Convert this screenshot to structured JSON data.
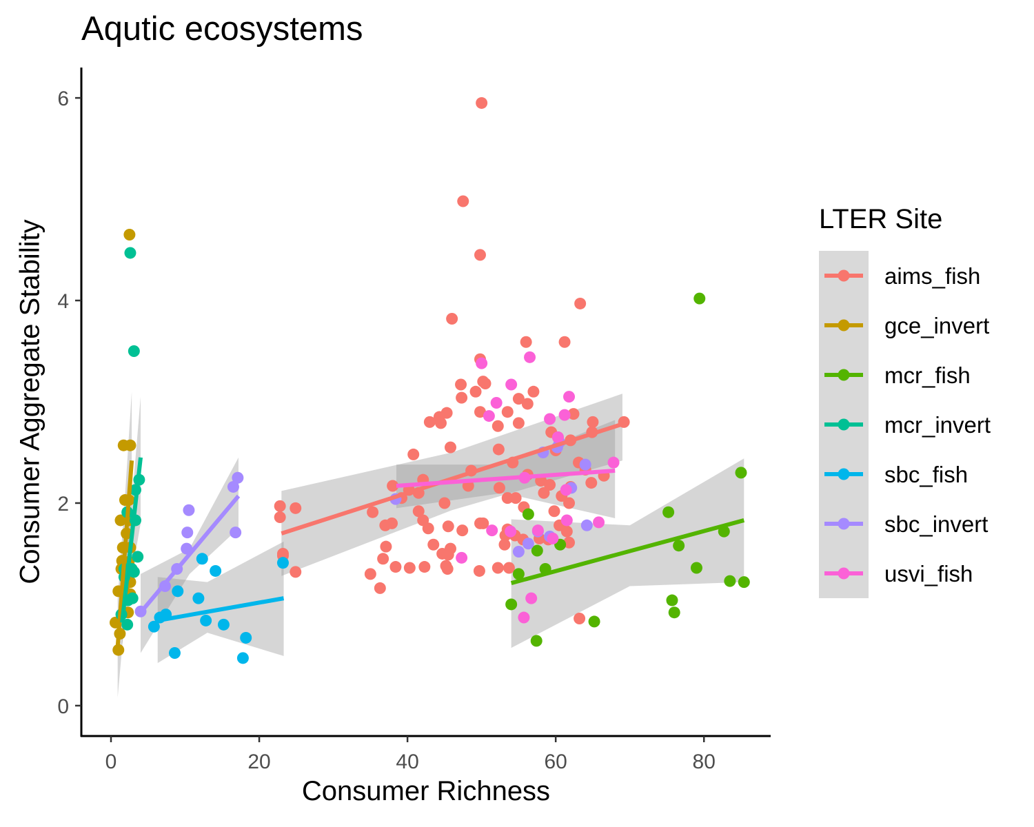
{
  "chart_data": {
    "type": "scatter",
    "title": "Aqutic ecosystems",
    "xlabel": "Consumer Richness",
    "ylabel": "Consumer Aggregate Stability",
    "xlim": [
      -4,
      89
    ],
    "ylim": [
      -0.3,
      6.3
    ],
    "xticks": [
      0,
      20,
      40,
      60,
      80
    ],
    "yticks": [
      0,
      2,
      4,
      6
    ],
    "grid": false,
    "legend": {
      "title": "LTER Site",
      "position": "right"
    },
    "series": [
      {
        "name": "aims_fish",
        "color": "#F8766D",
        "trend": {
          "x": [
            23,
            69
          ],
          "y": [
            1.7,
            2.78
          ],
          "band": [
            [
              23,
              1.28,
              2.12
            ],
            [
              46,
              1.93,
              2.5
            ],
            [
              69,
              2.42,
              3.08
            ]
          ]
        },
        "points": [
          [
            50,
            5.95
          ],
          [
            47.5,
            4.98
          ],
          [
            49.8,
            4.45
          ],
          [
            63.3,
            3.97
          ],
          [
            46,
            3.82
          ],
          [
            56,
            3.59
          ],
          [
            61.2,
            3.59
          ],
          [
            49.8,
            3.42
          ],
          [
            50.2,
            3.2
          ],
          [
            47.2,
            3.17
          ],
          [
            50.5,
            3.18
          ],
          [
            49.2,
            3.1
          ],
          [
            57,
            3.1
          ],
          [
            47.3,
            3.04
          ],
          [
            55,
            3.03
          ],
          [
            56.2,
            2.98
          ],
          [
            45.3,
            2.89
          ],
          [
            49.8,
            2.9
          ],
          [
            53.5,
            2.9
          ],
          [
            62.4,
            2.88
          ],
          [
            44.3,
            2.85
          ],
          [
            43,
            2.8
          ],
          [
            44.5,
            2.79
          ],
          [
            55,
            2.79
          ],
          [
            52.2,
            2.76
          ],
          [
            65,
            2.8
          ],
          [
            69.2,
            2.8
          ],
          [
            59.4,
            2.7
          ],
          [
            64.9,
            2.7
          ],
          [
            60.3,
            2.65
          ],
          [
            62,
            2.62
          ],
          [
            45.8,
            2.55
          ],
          [
            52.3,
            2.53
          ],
          [
            40.8,
            2.48
          ],
          [
            54.2,
            2.4
          ],
          [
            60,
            2.52
          ],
          [
            63.1,
            2.4
          ],
          [
            64,
            2.33
          ],
          [
            66.5,
            2.27
          ],
          [
            48.6,
            2.32
          ],
          [
            38,
            2.17
          ],
          [
            40.2,
            2.13
          ],
          [
            41.5,
            2.1
          ],
          [
            42.1,
            2.23
          ],
          [
            48.2,
            2.17
          ],
          [
            52.4,
            2.15
          ],
          [
            56.2,
            2.28
          ],
          [
            58,
            2.22
          ],
          [
            59.2,
            2.18
          ],
          [
            64.8,
            2.2
          ],
          [
            62,
            2.16
          ],
          [
            45,
            2.0
          ],
          [
            39.2,
            2.05
          ],
          [
            41.5,
            1.92
          ],
          [
            53.5,
            2.05
          ],
          [
            54.6,
            2.05
          ],
          [
            55.7,
            1.96
          ],
          [
            58.4,
            2.1
          ],
          [
            60.8,
            2.07
          ],
          [
            61.8,
            2.0
          ],
          [
            59.8,
            1.92
          ],
          [
            35.3,
            1.91
          ],
          [
            42.1,
            1.83
          ],
          [
            42.8,
            1.75
          ],
          [
            37,
            1.78
          ],
          [
            37.9,
            1.8
          ],
          [
            45.5,
            1.77
          ],
          [
            49.8,
            1.8
          ],
          [
            50.2,
            1.8
          ],
          [
            47.4,
            1.73
          ],
          [
            53.5,
            1.74
          ],
          [
            60.5,
            1.78
          ],
          [
            61.5,
            1.72
          ],
          [
            53.2,
            1.68
          ],
          [
            54.5,
            1.68
          ],
          [
            55.6,
            1.64
          ],
          [
            57.8,
            1.65
          ],
          [
            59,
            1.64
          ],
          [
            43.5,
            1.59
          ],
          [
            53.1,
            1.59
          ],
          [
            61.8,
            1.61
          ],
          [
            37.1,
            1.57
          ],
          [
            45.8,
            1.55
          ],
          [
            44.7,
            1.5
          ],
          [
            45.5,
            1.49
          ],
          [
            36.7,
            1.45
          ],
          [
            38.4,
            1.37
          ],
          [
            40.3,
            1.36
          ],
          [
            42.3,
            1.37
          ],
          [
            45.2,
            1.38
          ],
          [
            45.4,
            1.35
          ],
          [
            49.7,
            1.33
          ],
          [
            52.2,
            1.36
          ],
          [
            53.7,
            1.36
          ],
          [
            35,
            1.3
          ],
          [
            36.3,
            1.16
          ],
          [
            22.8,
            1.97
          ],
          [
            22.8,
            1.86
          ],
          [
            24.9,
            1.95
          ],
          [
            23.2,
            1.5
          ],
          [
            23.2,
            1.48
          ],
          [
            24.9,
            1.32
          ],
          [
            63.2,
            0.86
          ]
        ]
      },
      {
        "name": "gce_invert",
        "color": "#C49A00",
        "trend": {
          "x": [
            0.9,
            2.8
          ],
          "y": [
            0.58,
            2.42
          ],
          "band": [
            [
              0.9,
              0.08,
              1.05
            ],
            [
              1.9,
              0.9,
              2.08
            ],
            [
              2.8,
              1.78,
              3.1
            ]
          ]
        },
        "points": [
          [
            2.5,
            4.65
          ],
          [
            1.7,
            2.57
          ],
          [
            2.6,
            2.57
          ],
          [
            1.9,
            2.03
          ],
          [
            2.4,
            2.03
          ],
          [
            1.3,
            1.83
          ],
          [
            2.4,
            1.83
          ],
          [
            2.1,
            1.7
          ],
          [
            1.6,
            1.56
          ],
          [
            2.6,
            1.56
          ],
          [
            1.5,
            1.43
          ],
          [
            2.4,
            1.42
          ],
          [
            1.4,
            1.35
          ],
          [
            2.6,
            1.22
          ],
          [
            1,
            1.13
          ],
          [
            1.8,
            1.13
          ],
          [
            2.6,
            1.1
          ],
          [
            2.3,
            0.92
          ],
          [
            0.6,
            0.82
          ],
          [
            1.2,
            0.71
          ],
          [
            1,
            0.55
          ]
        ]
      },
      {
        "name": "mcr_fish",
        "color": "#53B400",
        "trend": {
          "x": [
            54,
            85.4
          ],
          "y": [
            1.21,
            1.83
          ],
          "band": [
            [
              54,
              0.57,
              1.84
            ],
            [
              70,
              1.18,
              1.78
            ],
            [
              85.4,
              1.22,
              2.44
            ]
          ]
        },
        "points": [
          [
            79.4,
            4.02
          ],
          [
            85,
            2.3
          ],
          [
            56.3,
            1.89
          ],
          [
            75.2,
            1.91
          ],
          [
            82.7,
            1.72
          ],
          [
            76.6,
            1.58
          ],
          [
            57.5,
            1.53
          ],
          [
            60.6,
            1.59
          ],
          [
            58.6,
            1.35
          ],
          [
            79,
            1.36
          ],
          [
            55,
            1.3
          ],
          [
            83.5,
            1.23
          ],
          [
            85.4,
            1.22
          ],
          [
            75.7,
            1.04
          ],
          [
            54,
            1.0
          ],
          [
            76,
            0.92
          ],
          [
            65.2,
            0.83
          ],
          [
            57.4,
            0.64
          ]
        ]
      },
      {
        "name": "mcr_invert",
        "color": "#00C094",
        "trend": {
          "x": [
            1.5,
            4
          ],
          "y": [
            0.82,
            2.45
          ],
          "band": [
            [
              1.5,
              0.6,
              1.05
            ],
            [
              2.8,
              1.3,
              2.0
            ],
            [
              4,
              1.8,
              3.05
            ]
          ]
        },
        "points": [
          [
            2.6,
            4.47
          ],
          [
            3.1,
            3.5
          ],
          [
            3.8,
            2.23
          ],
          [
            3.3,
            2.13
          ],
          [
            2.2,
            1.91
          ],
          [
            3.3,
            1.83
          ],
          [
            3.6,
            1.47
          ],
          [
            1.8,
            1.35
          ],
          [
            2.8,
            1.35
          ],
          [
            3.1,
            1.32
          ],
          [
            1.8,
            1.27
          ],
          [
            2.9,
            1.06
          ],
          [
            2.3,
            1.04
          ],
          [
            1.4,
            0.9
          ],
          [
            2.2,
            0.8
          ]
        ]
      },
      {
        "name": "sbc_fish",
        "color": "#00B6EB",
        "trend": {
          "x": [
            6.3,
            23.3
          ],
          "y": [
            0.84,
            1.06
          ],
          "band": [
            [
              6.3,
              0.42,
              1.27
            ],
            [
              13,
              0.72,
              1.22
            ],
            [
              23.3,
              0.49,
              1.62
            ]
          ]
        },
        "points": [
          [
            23.2,
            1.41
          ],
          [
            12.3,
            1.45
          ],
          [
            14.1,
            1.33
          ],
          [
            9,
            1.13
          ],
          [
            11.8,
            1.06
          ],
          [
            7.4,
            0.9
          ],
          [
            6.6,
            0.87
          ],
          [
            12.8,
            0.84
          ],
          [
            5.8,
            0.78
          ],
          [
            15.2,
            0.8
          ],
          [
            18.2,
            0.67
          ],
          [
            8.6,
            0.52
          ],
          [
            17.8,
            0.47
          ]
        ]
      },
      {
        "name": "sbc_invert",
        "color": "#A58AFF",
        "trend": {
          "x": [
            4,
            17.2
          ],
          "y": [
            0.92,
            2.07
          ],
          "band": [
            [
              4,
              0.52,
              1.3
            ],
            [
              10.6,
              1.3,
              1.55
            ],
            [
              17.2,
              1.75,
              2.45
            ]
          ]
        },
        "points": [
          [
            17.1,
            2.25
          ],
          [
            16.5,
            2.16
          ],
          [
            10.5,
            1.93
          ],
          [
            10.3,
            1.71
          ],
          [
            16.8,
            1.71
          ],
          [
            10.2,
            1.55
          ],
          [
            8.9,
            1.35
          ],
          [
            7.3,
            1.18
          ],
          [
            4,
            0.93
          ],
          [
            64,
            2.38
          ],
          [
            60.2,
            2.55
          ],
          [
            62.1,
            2.15
          ],
          [
            55,
            1.52
          ],
          [
            56.3,
            1.6
          ],
          [
            57.6,
            1.72
          ],
          [
            59.2,
            1.67
          ],
          [
            64.2,
            1.78
          ],
          [
            58.3,
            2.5
          ],
          [
            60.5,
            2.6
          ],
          [
            38.4,
            2.04
          ]
        ]
      },
      {
        "name": "usvi_fish",
        "color": "#FB61D7",
        "trend": {
          "x": [
            38.5,
            68
          ],
          "y": [
            2.17,
            2.32
          ],
          "band": [
            [
              38.5,
              1.95,
              2.38
            ],
            [
              53,
              2.1,
              2.38
            ],
            [
              68,
              1.85,
              2.82
            ]
          ]
        },
        "points": [
          [
            56.5,
            3.44
          ],
          [
            50,
            3.38
          ],
          [
            54,
            3.17
          ],
          [
            61.8,
            3.05
          ],
          [
            52,
            2.99
          ],
          [
            51,
            2.86
          ],
          [
            59.2,
            2.83
          ],
          [
            61.2,
            2.87
          ],
          [
            60.3,
            2.65
          ],
          [
            55.8,
            2.25
          ],
          [
            61.4,
            2.13
          ],
          [
            67.8,
            2.4
          ],
          [
            61.5,
            1.83
          ],
          [
            65.8,
            1.81
          ],
          [
            51.4,
            1.73
          ],
          [
            53.9,
            1.72
          ],
          [
            57.6,
            1.73
          ],
          [
            59.6,
            1.65
          ],
          [
            47.3,
            1.46
          ],
          [
            56.7,
            1.06
          ],
          [
            55.7,
            0.87
          ]
        ]
      }
    ]
  }
}
